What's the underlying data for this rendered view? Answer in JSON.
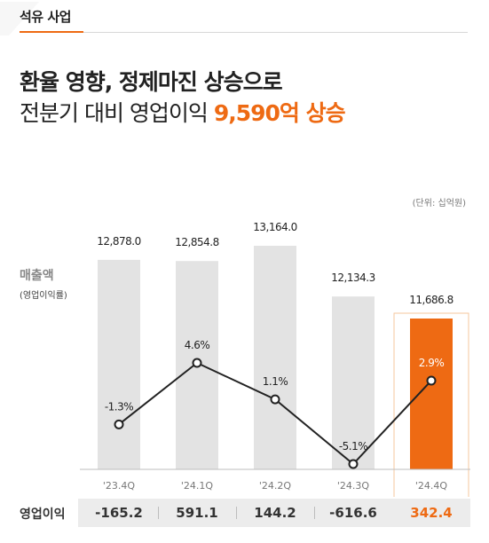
{
  "section_tab": "석유 사업",
  "headline": {
    "line1": "환율 영향, 정제마진 상승으로",
    "line2_prefix": "전분기 대비 영업이익 ",
    "line2_highlight": "9,590억 상승"
  },
  "unit_label": "(단위: 십억원)",
  "metric_label": {
    "main": "매출액",
    "sub": "(영업이익률)"
  },
  "colors": {
    "accent": "#EE6A13",
    "bar_gray": "#E3E3E3",
    "line": "#222222",
    "highlight_box": "#F6C79D"
  },
  "chart_data": {
    "type": "bar",
    "categories": [
      "'23.4Q",
      "'24.1Q",
      "'24.2Q",
      "'24.3Q",
      "'24.4Q"
    ],
    "bar_series": {
      "values": [
        12878.0,
        12854.8,
        13164.0,
        12134.3,
        11686.8
      ],
      "labels": [
        "12,878.0",
        "12,854.8",
        "13,164.0",
        "12,134.3",
        "11,686.8"
      ]
    },
    "line_series": {
      "values": [
        -1.3,
        4.6,
        1.1,
        -5.1,
        2.9
      ],
      "labels": [
        "-1.3%",
        "4.6%",
        "1.1%",
        "-5.1%",
        "2.9%"
      ]
    },
    "highlight_index": 4
  },
  "operating_profit": {
    "label": "영업이익",
    "values": [
      "-165.2",
      "591.1",
      "144.2",
      "-616.6",
      "342.4"
    ]
  }
}
